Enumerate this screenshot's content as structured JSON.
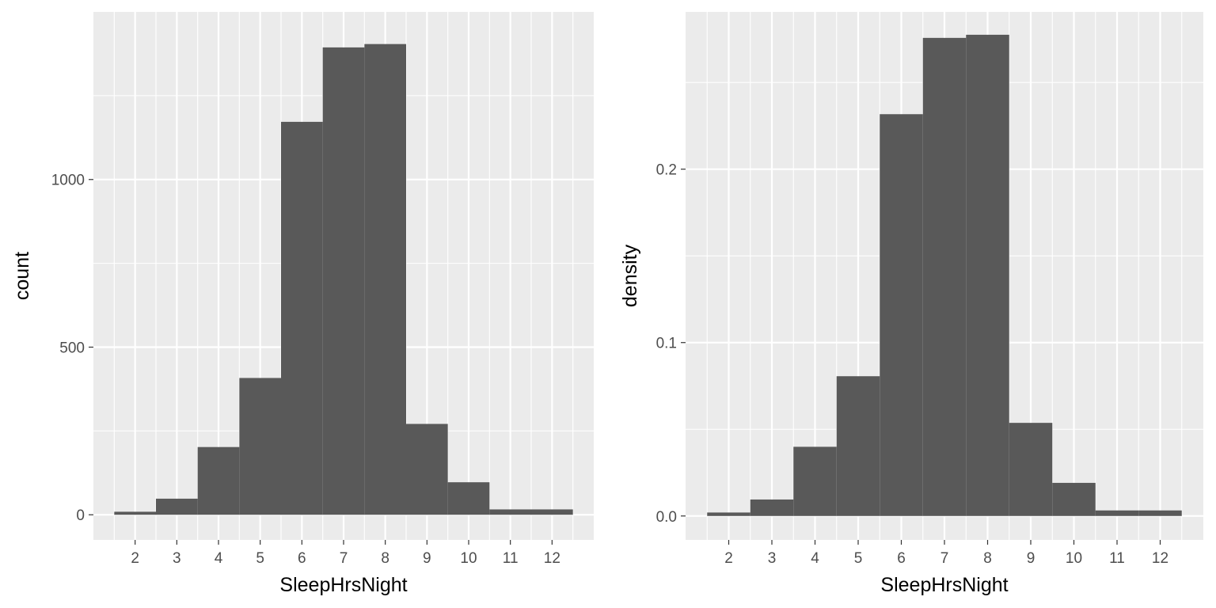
{
  "chart_data": [
    {
      "type": "bar",
      "subtype": "histogram",
      "xlabel": "SleepHrsNight",
      "ylabel": "count",
      "xlim": [
        1.0,
        13.0
      ],
      "ylim": [
        -75,
        1500
      ],
      "x_ticks": [
        2,
        3,
        4,
        5,
        6,
        7,
        8,
        9,
        10,
        11,
        12
      ],
      "y_ticks": [
        0,
        500,
        1000
      ],
      "y_tick_labels": [
        "0",
        "500",
        "1000"
      ],
      "bins": [
        {
          "x0": 1.5,
          "x1": 2.5,
          "value": 9
        },
        {
          "x0": 2.5,
          "x1": 3.5,
          "value": 48
        },
        {
          "x0": 3.5,
          "x1": 4.5,
          "value": 202
        },
        {
          "x0": 4.5,
          "x1": 5.5,
          "value": 408
        },
        {
          "x0": 5.5,
          "x1": 6.5,
          "value": 1172
        },
        {
          "x0": 6.5,
          "x1": 7.5,
          "value": 1394
        },
        {
          "x0": 7.5,
          "x1": 8.5,
          "value": 1404
        },
        {
          "x0": 8.5,
          "x1": 9.5,
          "value": 271
        },
        {
          "x0": 9.5,
          "x1": 10.5,
          "value": 97
        },
        {
          "x0": 10.5,
          "x1": 11.5,
          "value": 16
        },
        {
          "x0": 11.5,
          "x1": 12.5,
          "value": 16
        }
      ],
      "colors": {
        "bar": "#595959",
        "panel": "#ebebeb",
        "grid": "#ffffff"
      },
      "grid": true,
      "legend": "none"
    },
    {
      "type": "bar",
      "subtype": "histogram",
      "xlabel": "SleepHrsNight",
      "ylabel": "density",
      "xlim": [
        1.0,
        13.0
      ],
      "ylim": [
        -0.0138,
        0.2907
      ],
      "x_ticks": [
        2,
        3,
        4,
        5,
        6,
        7,
        8,
        9,
        10,
        11,
        12
      ],
      "y_ticks": [
        0.0,
        0.1,
        0.2
      ],
      "y_tick_labels": [
        "0.0",
        "0.1",
        "0.2"
      ],
      "bins": [
        {
          "x0": 1.5,
          "x1": 2.5,
          "value": 0.002
        },
        {
          "x0": 2.5,
          "x1": 3.5,
          "value": 0.0095
        },
        {
          "x0": 3.5,
          "x1": 4.5,
          "value": 0.0399
        },
        {
          "x0": 4.5,
          "x1": 5.5,
          "value": 0.0806
        },
        {
          "x0": 5.5,
          "x1": 6.5,
          "value": 0.2317
        },
        {
          "x0": 6.5,
          "x1": 7.5,
          "value": 0.2757
        },
        {
          "x0": 7.5,
          "x1": 8.5,
          "value": 0.2775
        },
        {
          "x0": 8.5,
          "x1": 9.5,
          "value": 0.0537
        },
        {
          "x0": 9.5,
          "x1": 10.5,
          "value": 0.0191
        },
        {
          "x0": 10.5,
          "x1": 11.5,
          "value": 0.0032
        },
        {
          "x0": 11.5,
          "x1": 12.5,
          "value": 0.0032
        }
      ],
      "colors": {
        "bar": "#595959",
        "panel": "#ebebeb",
        "grid": "#ffffff"
      },
      "grid": true,
      "legend": "none"
    }
  ]
}
